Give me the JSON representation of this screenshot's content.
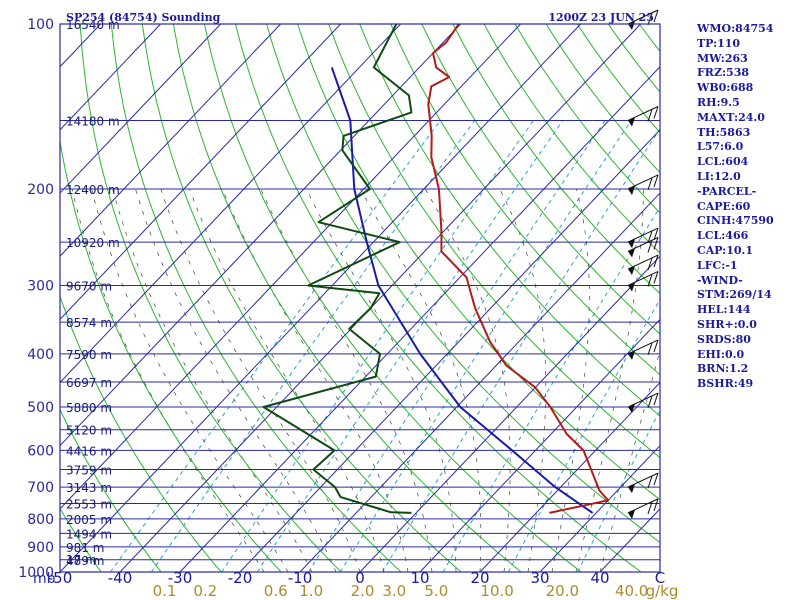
{
  "header": {
    "station_title": "SP254 (84754) Sounding",
    "time_title": "1200Z 23 JUN 25"
  },
  "stats": [
    "WMO:84754",
    "TP:110",
    "MW:263",
    "FRZ:538",
    "WB0:688",
    "RH:9.5",
    "MAXT:24.0",
    "TH:5863",
    "L57:6.0",
    "LCL:604",
    "LI:12.0",
    "-PARCEL-",
    "CAPE:60",
    "CINH:47590",
    "LCL:466",
    "CAP:10.1",
    "LFC:-1",
    "-WIND-",
    "STM:269/14",
    "HEL:144",
    "SHR+:0.0",
    "SRDS:80",
    "EHI:0.0",
    "BRN:1.2",
    "BSHR:49"
  ],
  "colors": {
    "isobar": "#2a2aa0",
    "isotherm": "#2a2aa0",
    "dry_adiabat": "#2db52d",
    "moist_adiabat": "#444444",
    "mixing_ratio": "#2a9fd6",
    "temperature": "#b31a1a",
    "dewpoint": "#0f4a0f",
    "parcel": "#1a1aa8",
    "wind_barb": "#111111"
  },
  "chart_data": {
    "type": "skew-t log-p sounding",
    "y_scale": "log pressure",
    "pressure_range_mb": [
      100,
      1000
    ],
    "temperature_range_c": [
      -50,
      50
    ],
    "pressure_unit_label": "mb",
    "temperature_unit_label": "C",
    "mixing_ratio_unit_label": "g/kg",
    "pressure_labels": [
      100,
      200,
      300,
      400,
      500,
      600,
      700,
      800,
      900,
      1000
    ],
    "temperature_ticks": [
      "-50",
      "-40",
      "-30",
      "-20",
      "-10",
      "0",
      "10",
      "20",
      "30",
      "40",
      "C"
    ],
    "mixing_ratio_ticks": [
      "0.1",
      "0.2",
      "0.6",
      "1.0",
      "2.0",
      "3.0",
      "5.0",
      "10.0",
      "20.0",
      "40.0"
    ],
    "height_labels": [
      {
        "p": 100,
        "label": "16540 m"
      },
      {
        "p": 150,
        "label": "14180 m"
      },
      {
        "p": 200,
        "label": "12400 m"
      },
      {
        "p": 250,
        "label": "10920 m"
      },
      {
        "p": 300,
        "label": "9670 m"
      },
      {
        "p": 350,
        "label": "8574 m"
      },
      {
        "p": 400,
        "label": "7590 m"
      },
      {
        "p": 450,
        "label": "6697 m"
      },
      {
        "p": 500,
        "label": "5880 m"
      },
      {
        "p": 550,
        "label": "5120 m"
      },
      {
        "p": 600,
        "label": "4416 m"
      },
      {
        "p": 650,
        "label": "3759 m"
      },
      {
        "p": 700,
        "label": "3143 m"
      },
      {
        "p": 750,
        "label": "2553 m"
      },
      {
        "p": 800,
        "label": "2005 m"
      },
      {
        "p": 850,
        "label": "1494 m"
      },
      {
        "p": 900,
        "label": "981 m"
      },
      {
        "p": 950,
        "label": "489 m"
      },
      {
        "p": 1000,
        "label": "17 m"
      }
    ],
    "temperature_profile": [
      {
        "p": 780,
        "t": 22.2
      },
      {
        "p": 770,
        "t": 24.1
      },
      {
        "p": 740,
        "t": 30.0
      },
      {
        "p": 710,
        "t": 27.0
      },
      {
        "p": 660,
        "t": 23.1
      },
      {
        "p": 600,
        "t": 18.0
      },
      {
        "p": 560,
        "t": 12.6
      },
      {
        "p": 500,
        "t": 5.6
      },
      {
        "p": 460,
        "t": -0.1
      },
      {
        "p": 420,
        "t": -8.3
      },
      {
        "p": 380,
        "t": -14.8
      },
      {
        "p": 330,
        "t": -22.6
      },
      {
        "p": 290,
        "t": -28.9
      },
      {
        "p": 260,
        "t": -37.2
      },
      {
        "p": 240,
        "t": -40.2
      },
      {
        "p": 200,
        "t": -47.5
      },
      {
        "p": 175,
        "t": -53.8
      },
      {
        "p": 160,
        "t": -57.1
      },
      {
        "p": 140,
        "t": -62.7
      },
      {
        "p": 130,
        "t": -65.0
      },
      {
        "p": 125,
        "t": -63.5
      },
      {
        "p": 120,
        "t": -67.2
      },
      {
        "p": 113,
        "t": -70.0
      },
      {
        "p": 108,
        "t": -69.5
      },
      {
        "p": 100,
        "t": -70.3
      }
    ],
    "dewpoint_profile": [
      {
        "p": 780,
        "td": -0.8
      },
      {
        "p": 778,
        "td": -4.3
      },
      {
        "p": 730,
        "td": -15.1
      },
      {
        "p": 700,
        "td": -17.6
      },
      {
        "p": 650,
        "td": -24.0
      },
      {
        "p": 600,
        "td": -23.5
      },
      {
        "p": 500,
        "td": -42.2
      },
      {
        "p": 440,
        "td": -28.3
      },
      {
        "p": 400,
        "td": -31.2
      },
      {
        "p": 360,
        "td": -40.3
      },
      {
        "p": 330,
        "td": -40.0
      },
      {
        "p": 310,
        "td": -40.9
      },
      {
        "p": 300,
        "td": -54.0
      },
      {
        "p": 250,
        "td": -45.6
      },
      {
        "p": 230,
        "td": -62.3
      },
      {
        "p": 200,
        "td": -59.0
      },
      {
        "p": 170,
        "td": -69.7
      },
      {
        "p": 160,
        "td": -71.8
      },
      {
        "p": 145,
        "td": -64.2
      },
      {
        "p": 135,
        "td": -67.3
      },
      {
        "p": 120,
        "td": -77.6
      },
      {
        "p": 100,
        "td": -80.7
      }
    ],
    "parcel_path": [
      {
        "p": 780,
        "t": 29.4
      },
      {
        "p": 700,
        "t": 19.1
      },
      {
        "p": 600,
        "t": 6.1
      },
      {
        "p": 500,
        "t": -9.4
      },
      {
        "p": 400,
        "t": -24.5
      },
      {
        "p": 300,
        "t": -42.3
      },
      {
        "p": 250,
        "t": -51.1
      },
      {
        "p": 200,
        "t": -61.6
      },
      {
        "p": 150,
        "t": -73.1
      },
      {
        "p": 120,
        "t": -84.6
      }
    ],
    "wind_barb_pressures": [
      780,
      700,
      500,
      400,
      300,
      280,
      260,
      250,
      200,
      150,
      100
    ]
  }
}
